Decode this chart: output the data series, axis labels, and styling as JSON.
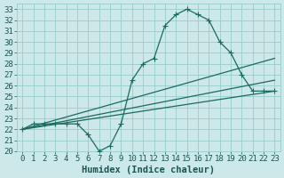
{
  "xlabel": "Humidex (Indice chaleur)",
  "bg_color": "#cce8e8",
  "grid_color": "#99cccc",
  "line_color": "#1a6b60",
  "xlim": [
    -0.5,
    23.5
  ],
  "ylim": [
    20,
    33.5
  ],
  "xticks": [
    0,
    1,
    2,
    3,
    4,
    5,
    6,
    7,
    8,
    9,
    10,
    11,
    12,
    13,
    14,
    15,
    16,
    17,
    18,
    19,
    20,
    21,
    22,
    23
  ],
  "yticks": [
    20,
    21,
    22,
    23,
    24,
    25,
    26,
    27,
    28,
    29,
    30,
    31,
    32,
    33
  ],
  "curve_x": [
    0,
    1,
    2,
    3,
    4,
    5,
    6,
    7,
    8,
    9,
    10,
    11,
    12,
    13,
    14,
    15,
    16,
    17,
    18,
    19,
    20,
    21,
    22,
    23
  ],
  "curve_y": [
    22,
    22.5,
    22.5,
    22.5,
    22.5,
    22.5,
    21.5,
    20,
    20.5,
    22.5,
    26.5,
    28,
    28.5,
    31.5,
    32.5,
    33,
    32.5,
    32,
    30,
    29,
    27,
    25.5,
    25.5,
    25.5
  ],
  "line_straight": [
    {
      "x": [
        0,
        23
      ],
      "y": [
        22,
        25.5
      ]
    },
    {
      "x": [
        0,
        23
      ],
      "y": [
        22,
        26.5
      ]
    },
    {
      "x": [
        0,
        23
      ],
      "y": [
        22,
        28.5
      ]
    }
  ],
  "font_color": "#1a5555",
  "font_size": 6.5,
  "xlabel_fontsize": 7.5,
  "marker_size": 2.5,
  "linewidth": 0.9
}
